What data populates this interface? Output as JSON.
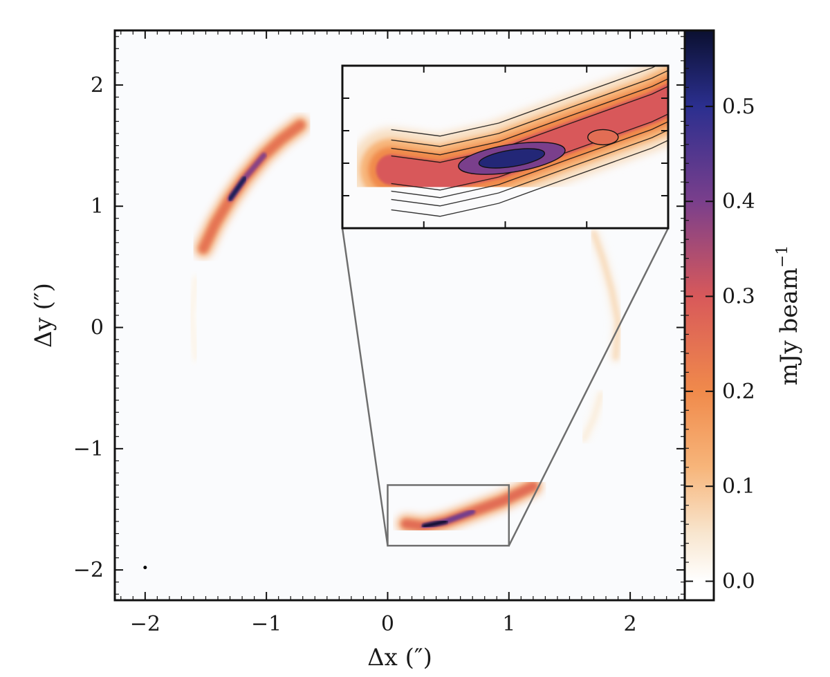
{
  "chart_data": {
    "type": "heatmap",
    "title": "",
    "xlabel": "Δx (″)",
    "ylabel": "Δy (″)",
    "xlim": [
      -2.25,
      2.45
    ],
    "ylim": [
      -2.25,
      2.45
    ],
    "xticks": [
      {
        "value": -2,
        "label": "−2"
      },
      {
        "value": -1,
        "label": "−1"
      },
      {
        "value": 0,
        "label": "0"
      },
      {
        "value": 1,
        "label": "1"
      },
      {
        "value": 2,
        "label": "2"
      }
    ],
    "yticks": [
      {
        "value": -2,
        "label": "−2"
      },
      {
        "value": -1,
        "label": "−1"
      },
      {
        "value": 0,
        "label": "0"
      },
      {
        "value": 1,
        "label": "1"
      },
      {
        "value": 2,
        "label": "2"
      }
    ],
    "colorbar": {
      "label": "mJy beam",
      "label_exponent": "−1",
      "range": [
        -0.02,
        0.58
      ],
      "ticks": [
        {
          "value": 0.0,
          "label": "0.0"
        },
        {
          "value": 0.1,
          "label": "0.1"
        },
        {
          "value": 0.2,
          "label": "0.2"
        },
        {
          "value": 0.3,
          "label": "0.3"
        },
        {
          "value": 0.4,
          "label": "0.4"
        },
        {
          "value": 0.5,
          "label": "0.5"
        }
      ],
      "stops": [
        {
          "value": 0.0,
          "color": "#ffffff"
        },
        {
          "value": 0.05,
          "color": "#f8e6cf"
        },
        {
          "value": 0.12,
          "color": "#f7b57a"
        },
        {
          "value": 0.2,
          "color": "#f08a4b"
        },
        {
          "value": 0.3,
          "color": "#d8595a"
        },
        {
          "value": 0.4,
          "color": "#7a3f8c"
        },
        {
          "value": 0.5,
          "color": "#2b2f8f"
        },
        {
          "value": 0.58,
          "color": "#0b1030"
        }
      ]
    },
    "zoom_box": {
      "x": [
        0.0,
        1.0
      ],
      "y": [
        -1.8,
        -1.3
      ]
    },
    "features": [
      {
        "name": "upper-left arc",
        "points": [
          [
            -1.52,
            0.65
          ],
          [
            -1.42,
            0.86
          ],
          [
            -1.3,
            1.06
          ],
          [
            -1.18,
            1.23
          ],
          [
            -1.02,
            1.42
          ],
          [
            -0.88,
            1.55
          ],
          [
            -0.72,
            1.67
          ]
        ],
        "peak": 0.55
      },
      {
        "name": "lower arc",
        "points": [
          [
            0.15,
            -1.62
          ],
          [
            0.3,
            -1.64
          ],
          [
            0.48,
            -1.6
          ],
          [
            0.7,
            -1.52
          ],
          [
            0.95,
            -1.43
          ],
          [
            1.2,
            -1.31
          ]
        ],
        "peak": 0.58
      },
      {
        "name": "right arc",
        "points": [
          [
            1.7,
            0.78
          ],
          [
            1.78,
            0.55
          ],
          [
            1.85,
            0.3
          ],
          [
            1.9,
            0.05
          ],
          [
            1.88,
            -0.25
          ]
        ],
        "peak": 0.15
      },
      {
        "name": "lower-right arc",
        "points": [
          [
            1.76,
            -0.55
          ],
          [
            1.7,
            -0.75
          ],
          [
            1.62,
            -0.92
          ]
        ],
        "peak": 0.08
      },
      {
        "name": "faint left arc",
        "points": [
          [
            -1.58,
            0.4
          ],
          [
            -1.62,
            0.1
          ],
          [
            -1.58,
            -0.25
          ]
        ],
        "peak": 0.05
      }
    ],
    "beam": {
      "x": -2.0,
      "y": -1.98
    }
  }
}
